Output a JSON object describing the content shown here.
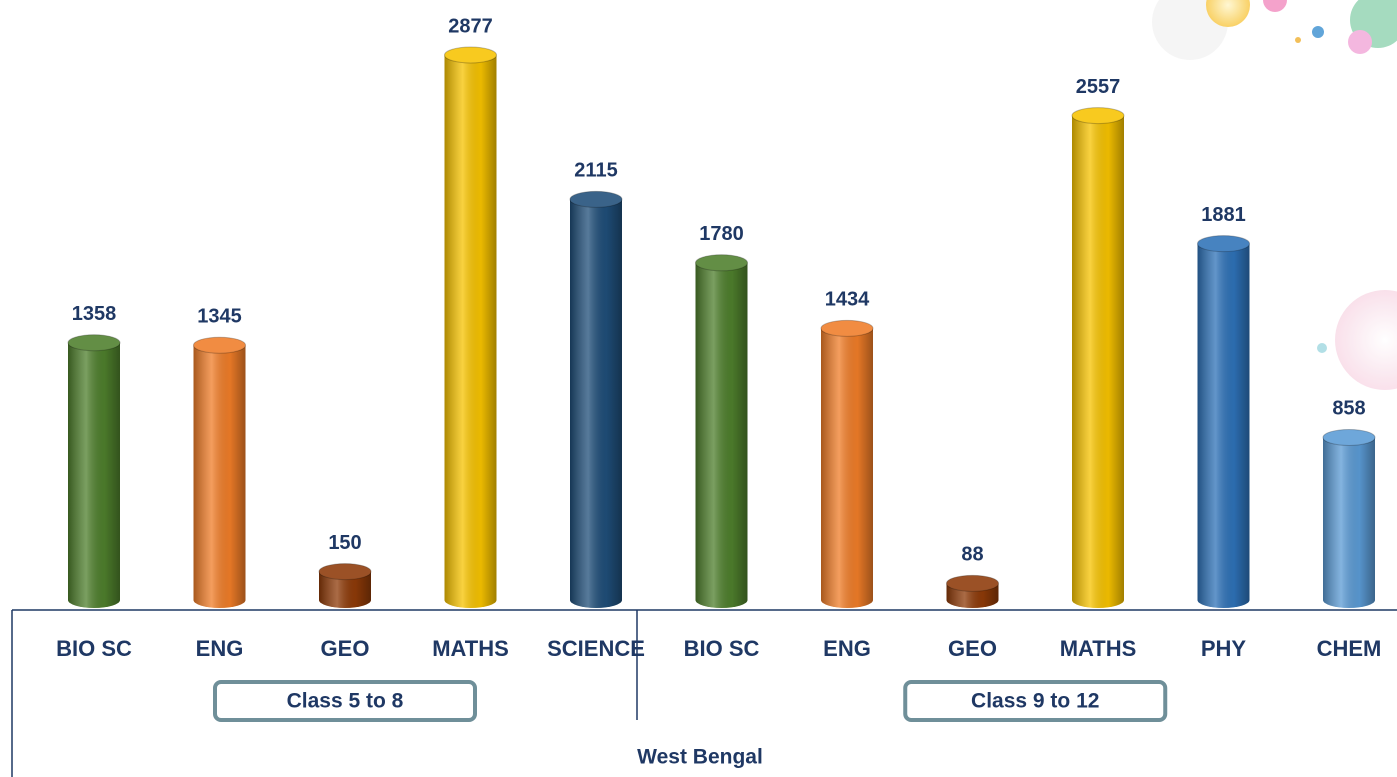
{
  "chart_data": {
    "type": "bar",
    "categories": [
      "BIO SC",
      "ENG",
      "GEO",
      "MATHS",
      "SCIENCE",
      "BIO SC",
      "ENG",
      "GEO",
      "MATHS",
      "PHY",
      "CHEM"
    ],
    "values": [
      1358,
      1345,
      150,
      2877,
      2115,
      1780,
      1434,
      88,
      2557,
      1881,
      858
    ],
    "colors": [
      "#4e7f2c",
      "#f07d28",
      "#8e3a08",
      "#f7c300",
      "#1f4e79",
      "#4e7f2c",
      "#f07d28",
      "#8e3a08",
      "#f7c300",
      "#2e72b8",
      "#5b9bd5"
    ],
    "groups": [
      {
        "label": "Class 5 to 8",
        "start": 0,
        "end": 4
      },
      {
        "label": "Class 9 to 12",
        "start": 5,
        "end": 10
      }
    ],
    "region": "West Bengal"
  }
}
